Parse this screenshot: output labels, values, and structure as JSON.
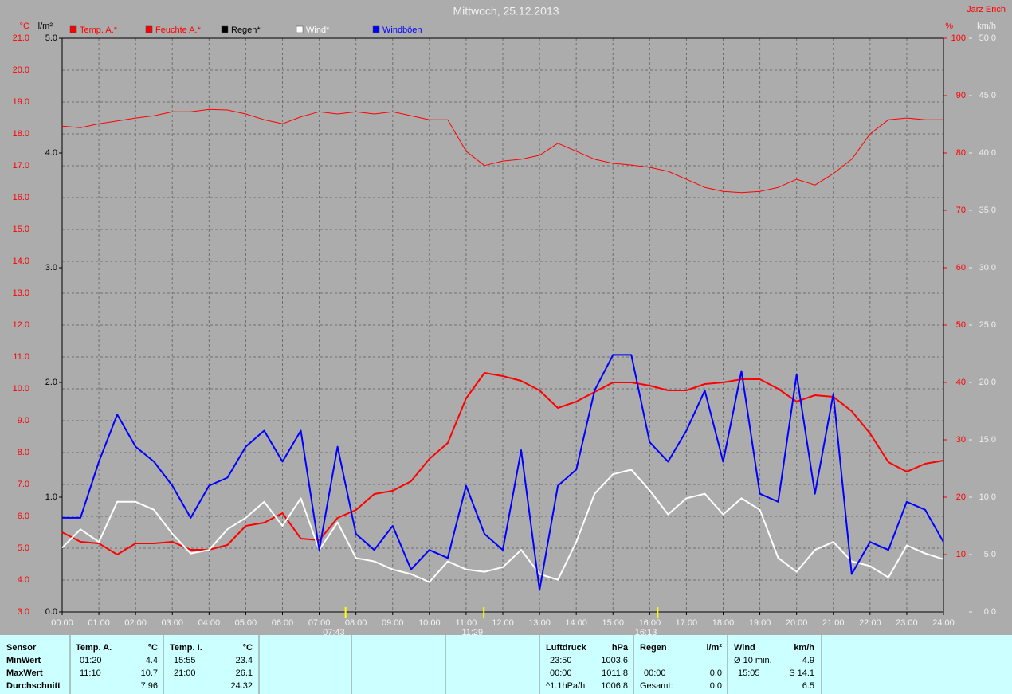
{
  "chart_data": {
    "type": "line",
    "title": "Mittwoch, 25.12.2013",
    "author": "Jarz Erich",
    "grid": true,
    "x": [
      0,
      0.5,
      1,
      1.5,
      2,
      2.5,
      3,
      3.5,
      4,
      4.5,
      5,
      5.5,
      6,
      6.5,
      7,
      7.5,
      8,
      8.5,
      9,
      9.5,
      10,
      10.5,
      11,
      11.5,
      12,
      12.5,
      13,
      13.5,
      14,
      14.5,
      15,
      15.5,
      16,
      16.5,
      17,
      17.5,
      18,
      18.5,
      19,
      19.5,
      20,
      20.5,
      21,
      21.5,
      22,
      22.5,
      23,
      23.5,
      24
    ],
    "xlim": [
      0,
      24
    ],
    "xticks": [
      {
        "value": 0,
        "label": "00:00"
      },
      {
        "value": 1,
        "label": "01:00"
      },
      {
        "value": 2,
        "label": "02:00"
      },
      {
        "value": 3,
        "label": "03:00"
      },
      {
        "value": 4,
        "label": "04:00"
      },
      {
        "value": 5,
        "label": "05:00"
      },
      {
        "value": 6,
        "label": "06:00"
      },
      {
        "value": 7,
        "label": "07:00"
      },
      {
        "value": 8,
        "label": "08:00"
      },
      {
        "value": 9,
        "label": "09:00"
      },
      {
        "value": 10,
        "label": "10:00"
      },
      {
        "value": 11,
        "label": "11:00"
      },
      {
        "value": 12,
        "label": "12:00"
      },
      {
        "value": 13,
        "label": "13:00"
      },
      {
        "value": 14,
        "label": "14:00"
      },
      {
        "value": 15,
        "label": "15:00"
      },
      {
        "value": 16,
        "label": "16:00"
      },
      {
        "value": 17,
        "label": "17:00"
      },
      {
        "value": 18,
        "label": "18:00"
      },
      {
        "value": 19,
        "label": "19:00"
      },
      {
        "value": 20,
        "label": "20:00"
      },
      {
        "value": 21,
        "label": "21:00"
      },
      {
        "value": 22,
        "label": "22:00"
      },
      {
        "value": 23,
        "label": "23:00"
      },
      {
        "value": 24,
        "label": "24:00"
      }
    ],
    "y_unit": "°C",
    "ylim": [
      3,
      21
    ],
    "yticks": [
      {
        "value": 3,
        "label": "3.0"
      },
      {
        "value": 4,
        "label": "4.0"
      },
      {
        "value": 5,
        "label": "5.0"
      },
      {
        "value": 6,
        "label": "6.0"
      },
      {
        "value": 7,
        "label": "7.0"
      },
      {
        "value": 8,
        "label": "8.0"
      },
      {
        "value": 9,
        "label": "9.0"
      },
      {
        "value": 10,
        "label": "10.0"
      },
      {
        "value": 11,
        "label": "11.0"
      },
      {
        "value": 12,
        "label": "12.0"
      },
      {
        "value": 13,
        "label": "13.0"
      },
      {
        "value": 14,
        "label": "14.0"
      },
      {
        "value": 15,
        "label": "15.0"
      },
      {
        "value": 16,
        "label": "16.0"
      },
      {
        "value": 17,
        "label": "17.0"
      },
      {
        "value": 18,
        "label": "18.0"
      },
      {
        "value": 19,
        "label": "19.0"
      },
      {
        "value": 20,
        "label": "20.0"
      },
      {
        "value": 21,
        "label": "21.0"
      }
    ],
    "rain_unit": "l/m²",
    "rainlim": [
      0,
      5
    ],
    "rainticks": [
      {
        "value": 0,
        "label": "0.0"
      },
      {
        "value": 1,
        "label": "1.0"
      },
      {
        "value": 2,
        "label": "2.0"
      },
      {
        "value": 3,
        "label": "3.0"
      },
      {
        "value": 4,
        "label": "4.0"
      },
      {
        "value": 5,
        "label": "5.0"
      }
    ],
    "y2_unit": "%",
    "y2lim": [
      0,
      100
    ],
    "y2ticks": [
      10,
      20,
      30,
      40,
      50,
      60,
      70,
      80,
      90,
      100
    ],
    "y3_unit": "km/h",
    "y3lim": [
      0,
      50
    ],
    "y3ticks": [
      {
        "value": 0,
        "label": "0.0"
      },
      {
        "value": 5,
        "label": "5.0"
      },
      {
        "value": 10,
        "label": "10.0"
      },
      {
        "value": 15,
        "label": "15.0"
      },
      {
        "value": 20,
        "label": "20.0"
      },
      {
        "value": 25,
        "label": "25.0"
      },
      {
        "value": 30,
        "label": "30.0"
      },
      {
        "value": 35,
        "label": "35.0"
      },
      {
        "value": 40,
        "label": "40.0"
      },
      {
        "value": 45,
        "label": "45.0"
      },
      {
        "value": 50,
        "label": "50.0"
      }
    ],
    "series": [
      {
        "name": "Temp. A.*",
        "color": "#ff0000",
        "axis": "y",
        "width": 2,
        "values": [
          5.5,
          5.2,
          5.15,
          4.8,
          5.15,
          5.15,
          5.2,
          4.95,
          4.95,
          5.1,
          5.7,
          5.8,
          6.1,
          5.3,
          5.25,
          5.95,
          6.2,
          6.7,
          6.8,
          7.1,
          7.8,
          8.3,
          9.7,
          10.5,
          10.4,
          10.25,
          9.95,
          9.4,
          9.6,
          9.9,
          10.2,
          10.2,
          10.1,
          9.95,
          9.95,
          10.15,
          10.2,
          10.3,
          10.3,
          10.0,
          9.6,
          9.8,
          9.75,
          9.3,
          8.6,
          7.7,
          7.4,
          7.65,
          7.75
        ]
      },
      {
        "name": "Feuchte A.*",
        "color": "#ff0000",
        "axis": "y2",
        "width": 1,
        "values": [
          84.7,
          84.4,
          85.1,
          85.6,
          86.1,
          86.5,
          87.2,
          87.2,
          87.6,
          87.5,
          86.8,
          85.8,
          85.1,
          86.3,
          87.2,
          86.8,
          87.2,
          86.8,
          87.2,
          86.5,
          85.8,
          85.8,
          80.3,
          77.8,
          78.6,
          78.9,
          79.6,
          81.7,
          80.3,
          78.9,
          78.2,
          77.9,
          77.5,
          76.8,
          75.4,
          74.0,
          73.3,
          73.1,
          73.3,
          74.0,
          75.4,
          74.4,
          76.4,
          78.9,
          83.3,
          85.8,
          86.1,
          85.8,
          85.8
        ]
      },
      {
        "name": "Regen*",
        "color": "#000000",
        "axis": "rain"
      },
      {
        "name": "Wind*",
        "color": "#ffffff",
        "axis": "y3",
        "width": 2,
        "values": [
          5.6,
          7.2,
          6.1,
          9.6,
          9.6,
          8.9,
          6.8,
          5.1,
          5.4,
          7.2,
          8.2,
          9.6,
          7.5,
          9.9,
          5.4,
          7.8,
          4.7,
          4.4,
          3.7,
          3.3,
          2.6,
          4.4,
          3.7,
          3.5,
          3.9,
          5.4,
          3.3,
          2.8,
          6.1,
          10.3,
          12.0,
          12.4,
          10.6,
          8.5,
          9.9,
          10.3,
          8.5,
          9.9,
          8.9,
          4.7,
          3.5,
          5.4,
          6.1,
          4.4,
          4.0,
          3.0,
          5.8,
          5.1,
          4.6
        ]
      },
      {
        "name": "Windböen",
        "color": "#0000ff",
        "axis": "y3",
        "width": 2,
        "values": [
          8.2,
          8.2,
          13.1,
          17.2,
          14.4,
          13.1,
          11.0,
          8.2,
          11.0,
          11.7,
          14.4,
          15.8,
          13.1,
          15.8,
          5.4,
          14.4,
          6.8,
          5.4,
          7.5,
          3.7,
          5.4,
          4.7,
          11.0,
          6.8,
          5.4,
          14.1,
          1.9,
          11.0,
          12.4,
          19.3,
          22.4,
          22.4,
          14.8,
          13.1,
          15.8,
          19.3,
          13.1,
          21.0,
          10.3,
          9.6,
          20.7,
          10.3,
          19.0,
          3.3,
          6.1,
          5.4,
          9.6,
          8.9,
          6.1
        ]
      }
    ],
    "markers": [
      {
        "x": 7.717,
        "label": "07:43"
      },
      {
        "x": 11.483,
        "label": "11:29"
      },
      {
        "x": 16.217,
        "label": "16:13"
      }
    ]
  },
  "stats": {
    "labels": {
      "title": "Sensor",
      "min": "MinWert",
      "max": "MaxWert",
      "avg": "Durchschnitt"
    },
    "temp_a": {
      "name": "Temp. A.",
      "unit": "°C",
      "min_time": "01:20",
      "min": "4.4",
      "max_time": "11:10",
      "max": "10.7",
      "avg": "7.96"
    },
    "temp_i": {
      "name": "Temp. I.",
      "unit": "°C",
      "min_time": "15:55",
      "min": "23.4",
      "max_time": "21:00",
      "max": "26.1",
      "avg": "24.32"
    },
    "pressure": {
      "name": "Luftdruck",
      "unit": "hPa",
      "min_time": "23:50",
      "min": "1003.6",
      "max_time": "00:00",
      "max": "1011.8",
      "trend": "^1.1hPa/h",
      "avg": "1006.8"
    },
    "rain": {
      "name": "Regen",
      "unit": "l/m²",
      "max_time": "00:00",
      "max": "0.0",
      "total_label": "Gesamt:",
      "total": "0.0"
    },
    "wind": {
      "name": "Wind",
      "unit": "km/h",
      "avg10_label": "Ø 10 min.",
      "avg10": "4.9",
      "max_time": "15:05",
      "max": "S 14.1",
      "avg": "6.5"
    }
  }
}
